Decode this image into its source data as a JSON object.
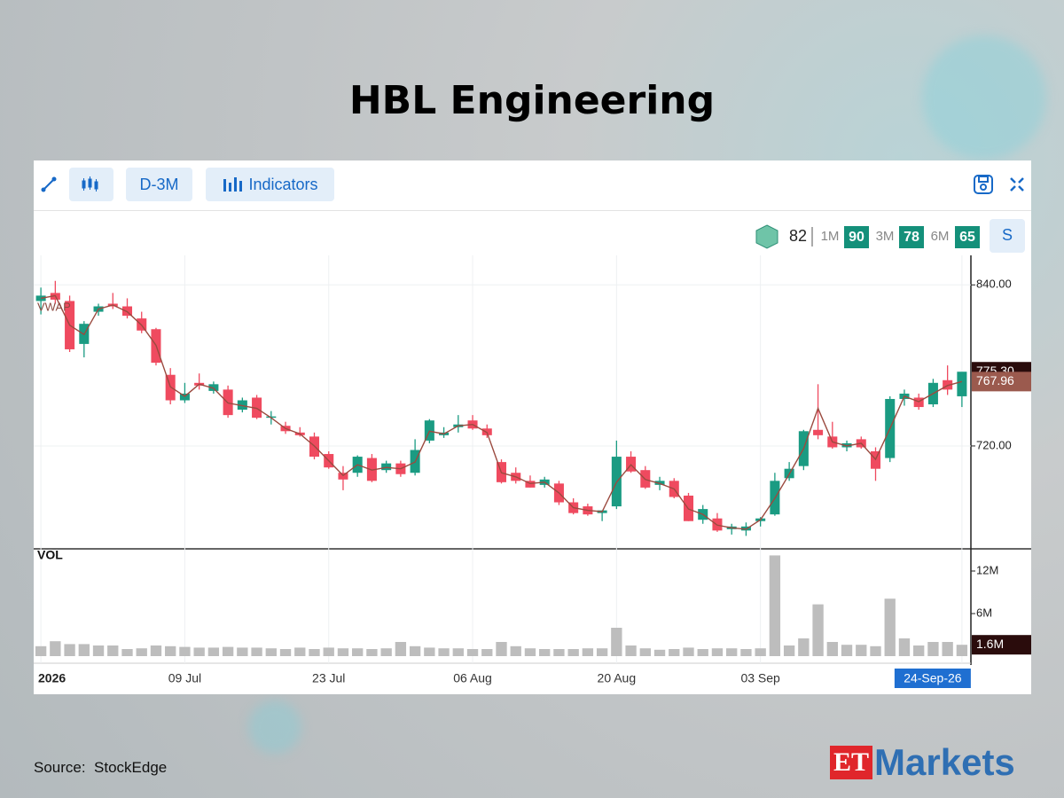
{
  "chart_data": {
    "type": "candlestick",
    "title": "HBL Engineering",
    "categories": [
      "2026",
      null,
      null,
      null,
      null,
      null,
      null,
      null,
      null,
      null,
      "09 Jul",
      null,
      null,
      null,
      null,
      null,
      null,
      null,
      null,
      null,
      "23 Jul",
      null,
      null,
      null,
      null,
      null,
      null,
      null,
      null,
      null,
      "06 Aug",
      null,
      null,
      null,
      null,
      null,
      null,
      null,
      null,
      null,
      "20 Aug",
      null,
      null,
      null,
      null,
      null,
      null,
      null,
      null,
      null,
      "03 Sep",
      null,
      null,
      null,
      null,
      null,
      null,
      null,
      null,
      null,
      null,
      null,
      null,
      null,
      "24-Sep-26"
    ],
    "open": [
      828,
      834,
      828,
      796,
      820,
      826,
      824,
      815,
      807,
      773,
      754,
      767,
      761,
      762,
      747,
      756,
      741,
      735,
      730,
      727,
      714,
      700,
      700,
      711,
      702,
      707,
      700,
      724,
      728,
      734,
      739,
      733,
      708,
      700,
      694,
      691,
      692,
      678,
      675,
      670,
      675,
      712,
      702,
      691,
      694,
      683,
      665,
      666,
      658,
      657,
      664,
      669,
      696,
      705,
      732,
      727,
      719,
      725,
      716,
      711,
      755,
      756,
      751,
      769,
      757
    ],
    "high": [
      838,
      843,
      832,
      813,
      826,
      834,
      830,
      820,
      808,
      778,
      767,
      774,
      768,
      765,
      756,
      758,
      746,
      738,
      734,
      730,
      716,
      705,
      713,
      714,
      709,
      709,
      725,
      740,
      734,
      743,
      743,
      736,
      710,
      704,
      698,
      697,
      694,
      681,
      677,
      672,
      724,
      716,
      705,
      697,
      696,
      685,
      676,
      670,
      662,
      663,
      667,
      700,
      708,
      732,
      766,
      738,
      724,
      727,
      719,
      757,
      762,
      759,
      770,
      780,
      775
    ],
    "low": [
      818,
      826,
      790,
      786,
      817,
      822,
      815,
      804,
      780,
      751,
      752,
      762,
      759,
      741,
      745,
      740,
      736,
      729,
      727,
      710,
      703,
      687,
      697,
      693,
      700,
      697,
      698,
      722,
      726,
      730,
      732,
      726,
      692,
      692,
      689,
      689,
      676,
      669,
      668,
      664,
      673,
      700,
      688,
      687,
      681,
      664,
      662,
      656,
      654,
      653,
      660,
      668,
      694,
      702,
      725,
      718,
      716,
      718,
      694,
      708,
      750,
      747,
      749,
      758,
      749
    ],
    "close": [
      832,
      829,
      792,
      811,
      824,
      824,
      817,
      806,
      782,
      754,
      759,
      765,
      766,
      743,
      754,
      741,
      742,
      731,
      728,
      712,
      704,
      695,
      712,
      694,
      707,
      699,
      717,
      739,
      730,
      736,
      733,
      728,
      693,
      694,
      689,
      695,
      678,
      670,
      669,
      672,
      712,
      701,
      689,
      694,
      682,
      664,
      673,
      657,
      660,
      660,
      666,
      694,
      703,
      731,
      728,
      719,
      722,
      719,
      703,
      755,
      759,
      749,
      767,
      762,
      775.3
    ],
    "close_label": "775.30",
    "up_color": "#1a9b82",
    "down_color": "#ef4a5f",
    "ylim": [
      644,
      862
    ],
    "yticks": [
      {
        "value": 840,
        "label": "840.00"
      },
      {
        "value": 720,
        "label": "720.00"
      }
    ],
    "grid": true,
    "overlay": {
      "name": "VWAP",
      "color": "#9b4a3f",
      "values": [
        830,
        832,
        810,
        803,
        822,
        825,
        820,
        810,
        795,
        764,
        757,
        766,
        763,
        752,
        750,
        748,
        741,
        733,
        729,
        720,
        709,
        698,
        706,
        702,
        704,
        703,
        708,
        731,
        729,
        735,
        736,
        730,
        700,
        697,
        692,
        693,
        685,
        674,
        672,
        671,
        693,
        706,
        695,
        692,
        688,
        673,
        669,
        661,
        659,
        658,
        665,
        681,
        699,
        718,
        748,
        723,
        720,
        722,
        710,
        733,
        757,
        753,
        759,
        765,
        767.96
      ],
      "last_label": "767.96"
    },
    "volume": {
      "name": "VOL",
      "color": "#bdbdbd",
      "values": [
        1.4,
        2.1,
        1.7,
        1.7,
        1.5,
        1.5,
        1.0,
        1.1,
        1.5,
        1.4,
        1.3,
        1.2,
        1.2,
        1.3,
        1.2,
        1.2,
        1.1,
        1.0,
        1.2,
        1.0,
        1.2,
        1.1,
        1.1,
        1.0,
        1.1,
        2.0,
        1.4,
        1.2,
        1.1,
        1.1,
        1.0,
        1.0,
        2.0,
        1.4,
        1.1,
        1.0,
        1.0,
        1.0,
        1.1,
        1.1,
        4.0,
        1.5,
        1.1,
        0.9,
        1.0,
        1.2,
        1.0,
        1.1,
        1.1,
        1.0,
        1.1,
        14.2,
        1.5,
        2.5,
        7.3,
        2.0,
        1.6,
        1.6,
        1.4,
        8.1,
        2.5,
        1.5,
        2.0,
        2.0,
        1.6
      ],
      "last_label": "1.6M",
      "ylim": [
        0,
        15
      ],
      "yticks": [
        {
          "value": 12,
          "label": "12M"
        },
        {
          "value": 6,
          "label": "6M"
        }
      ]
    }
  },
  "toolbar": {
    "range": "D-3M",
    "indicators": "Indicators"
  },
  "scores": {
    "overall": "82",
    "items": [
      {
        "label": "1M",
        "value": "90"
      },
      {
        "label": "3M",
        "value": "78"
      },
      {
        "label": "6M",
        "value": "65"
      }
    ],
    "s": "S"
  },
  "footer": {
    "source": "Source:  StockEdge",
    "logo_et": "ET",
    "logo_markets": "Markets"
  }
}
